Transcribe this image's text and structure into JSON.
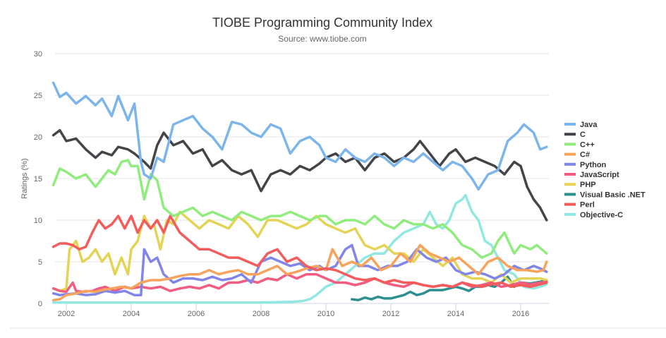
{
  "chart_data": {
    "type": "line",
    "title": "TIOBE Programming Community Index",
    "subtitle": "Source: www.tiobe.com",
    "xlabel": "",
    "ylabel": "Ratings (%)",
    "xlim": [
      2001.5,
      2016.9
    ],
    "ylim": [
      0,
      30
    ],
    "x_ticks": [
      "2002",
      "2004",
      "2006",
      "2008",
      "2010",
      "2012",
      "2014",
      "2016"
    ],
    "y_ticks": [
      "0",
      "5",
      "10",
      "15",
      "20",
      "25",
      "30"
    ],
    "grid": true,
    "legend_position": "right",
    "series": [
      {
        "name": "Java",
        "color": "#7cb5ec",
        "x": [
          2001.6,
          2001.8,
          2002.0,
          2002.3,
          2002.6,
          2002.9,
          2003.1,
          2003.4,
          2003.6,
          2003.9,
          2004.1,
          2004.3,
          2004.4,
          2004.6,
          2004.8,
          2005.0,
          2005.3,
          2005.6,
          2005.9,
          2006.2,
          2006.5,
          2006.8,
          2007.1,
          2007.4,
          2007.7,
          2008.0,
          2008.3,
          2008.6,
          2008.9,
          2009.2,
          2009.5,
          2009.8,
          2010.0,
          2010.3,
          2010.6,
          2010.9,
          2011.2,
          2011.5,
          2011.8,
          2012.1,
          2012.4,
          2012.7,
          2013.0,
          2013.3,
          2013.6,
          2013.9,
          2014.2,
          2014.5,
          2014.7,
          2015.0,
          2015.3,
          2015.6,
          2015.9,
          2016.1,
          2016.4,
          2016.6,
          2016.8
        ],
        "values": [
          26.5,
          24.8,
          25.3,
          24.0,
          24.9,
          23.8,
          24.6,
          22.5,
          24.9,
          22.0,
          24.0,
          17.0,
          15.5,
          15.0,
          17.5,
          17.0,
          21.5,
          22.0,
          22.5,
          21.0,
          20.0,
          18.5,
          21.8,
          21.5,
          20.5,
          20.0,
          21.5,
          21.0,
          18.0,
          19.5,
          20.0,
          19.0,
          17.5,
          17.0,
          18.5,
          17.5,
          17.0,
          18.0,
          17.5,
          16.5,
          17.5,
          17.0,
          18.0,
          17.0,
          16.0,
          17.0,
          16.5,
          15.0,
          13.7,
          15.5,
          16.0,
          19.5,
          20.5,
          21.5,
          20.5,
          18.5,
          18.8
        ]
      },
      {
        "name": "C",
        "color": "#434348",
        "x": [
          2001.6,
          2001.8,
          2002.0,
          2002.3,
          2002.6,
          2002.9,
          2003.1,
          2003.4,
          2003.6,
          2003.9,
          2004.1,
          2004.4,
          2004.6,
          2004.8,
          2005.0,
          2005.3,
          2005.6,
          2005.9,
          2006.2,
          2006.5,
          2006.8,
          2007.1,
          2007.4,
          2007.7,
          2008.0,
          2008.3,
          2008.6,
          2008.9,
          2009.2,
          2009.5,
          2009.8,
          2010.0,
          2010.3,
          2010.6,
          2010.9,
          2011.2,
          2011.5,
          2011.8,
          2012.1,
          2012.4,
          2012.7,
          2012.9,
          2013.2,
          2013.5,
          2013.8,
          2014.0,
          2014.3,
          2014.6,
          2014.9,
          2015.2,
          2015.5,
          2015.8,
          2016.0,
          2016.2,
          2016.4,
          2016.6,
          2016.8
        ],
        "values": [
          20.2,
          20.8,
          19.5,
          19.8,
          18.5,
          17.5,
          18.2,
          17.8,
          18.8,
          18.5,
          18.0,
          17.0,
          16.2,
          19.0,
          20.5,
          19.0,
          19.5,
          18.0,
          18.5,
          16.5,
          17.2,
          16.0,
          15.5,
          16.0,
          13.5,
          15.5,
          16.0,
          15.5,
          16.5,
          16.0,
          16.8,
          17.5,
          18.0,
          17.0,
          17.5,
          16.0,
          17.5,
          18.0,
          17.0,
          17.5,
          18.5,
          19.5,
          18.0,
          16.5,
          18.0,
          18.5,
          17.0,
          17.5,
          17.0,
          16.5,
          15.5,
          17.0,
          16.5,
          14.0,
          12.5,
          11.5,
          10.0
        ]
      },
      {
        "name": "C++",
        "color": "#90ed7d",
        "x": [
          2001.6,
          2001.8,
          2002.0,
          2002.3,
          2002.6,
          2002.9,
          2003.1,
          2003.3,
          2003.5,
          2003.7,
          2003.9,
          2004.0,
          2004.2,
          2004.4,
          2004.6,
          2004.8,
          2005.0,
          2005.3,
          2005.6,
          2005.9,
          2006.2,
          2006.5,
          2006.8,
          2007.1,
          2007.4,
          2007.7,
          2008.0,
          2008.3,
          2008.6,
          2008.9,
          2009.2,
          2009.5,
          2009.8,
          2010.0,
          2010.3,
          2010.6,
          2010.9,
          2011.2,
          2011.5,
          2011.8,
          2012.1,
          2012.4,
          2012.7,
          2013.0,
          2013.3,
          2013.6,
          2013.9,
          2014.2,
          2014.5,
          2014.8,
          2015.1,
          2015.3,
          2015.5,
          2015.8,
          2016.0,
          2016.3,
          2016.5,
          2016.8
        ],
        "values": [
          14.2,
          16.2,
          15.8,
          15.0,
          15.5,
          14.0,
          15.0,
          16.0,
          15.5,
          17.0,
          17.2,
          16.5,
          16.5,
          12.5,
          15.5,
          14.8,
          11.5,
          10.5,
          11.0,
          11.5,
          10.5,
          11.0,
          10.5,
          10.0,
          11.0,
          10.5,
          10.0,
          10.5,
          10.5,
          11.0,
          10.5,
          10.0,
          10.5,
          10.5,
          9.5,
          10.0,
          10.0,
          9.5,
          10.5,
          9.5,
          9.0,
          10.0,
          9.5,
          9.5,
          9.0,
          9.5,
          8.5,
          7.0,
          6.5,
          5.5,
          6.0,
          7.5,
          8.5,
          6.0,
          7.0,
          6.5,
          7.0,
          6.0
        ]
      },
      {
        "name": "C#",
        "color": "#f7a35c",
        "x": [
          2001.6,
          2001.8,
          2002.0,
          2002.3,
          2002.6,
          2002.9,
          2003.1,
          2003.4,
          2003.7,
          2004.0,
          2004.3,
          2004.6,
          2004.9,
          2005.2,
          2005.5,
          2005.8,
          2006.1,
          2006.4,
          2006.7,
          2007.0,
          2007.3,
          2007.6,
          2007.9,
          2008.2,
          2008.5,
          2008.8,
          2009.1,
          2009.4,
          2009.7,
          2010.0,
          2010.2,
          2010.5,
          2010.8,
          2011.1,
          2011.4,
          2011.7,
          2012.0,
          2012.3,
          2012.6,
          2012.9,
          2013.2,
          2013.5,
          2013.8,
          2014.1,
          2014.4,
          2014.7,
          2015.0,
          2015.3,
          2015.6,
          2015.9,
          2016.2,
          2016.5,
          2016.7,
          2016.8
        ],
        "values": [
          0.4,
          0.5,
          1.0,
          1.2,
          1.5,
          1.4,
          1.6,
          1.8,
          2.0,
          1.8,
          2.5,
          2.8,
          2.8,
          3.0,
          3.3,
          3.5,
          3.5,
          4.0,
          3.5,
          3.8,
          4.0,
          3.5,
          3.5,
          4.0,
          4.5,
          3.5,
          3.8,
          4.2,
          4.5,
          4.0,
          6.5,
          4.5,
          5.0,
          4.5,
          5.5,
          4.0,
          4.5,
          6.0,
          5.0,
          7.0,
          6.0,
          5.5,
          5.0,
          5.5,
          4.5,
          3.5,
          5.0,
          5.5,
          4.5,
          4.0,
          4.0,
          3.8,
          4.0,
          5.0
        ]
      },
      {
        "name": "Python",
        "color": "#8085e9",
        "x": [
          2001.6,
          2001.8,
          2002.0,
          2002.3,
          2002.6,
          2002.9,
          2003.2,
          2003.5,
          2003.8,
          2004.1,
          2004.3,
          2004.4,
          2004.6,
          2004.8,
          2005.0,
          2005.3,
          2005.6,
          2005.9,
          2006.2,
          2006.5,
          2006.8,
          2007.1,
          2007.4,
          2007.7,
          2008.0,
          2008.3,
          2008.6,
          2008.9,
          2009.2,
          2009.5,
          2009.8,
          2010.0,
          2010.3,
          2010.6,
          2010.8,
          2011.0,
          2011.3,
          2011.6,
          2011.9,
          2012.2,
          2012.5,
          2012.8,
          2013.1,
          2013.4,
          2013.7,
          2014.0,
          2014.3,
          2014.6,
          2014.9,
          2015.2,
          2015.5,
          2015.8,
          2016.1,
          2016.4,
          2016.6,
          2016.8
        ],
        "values": [
          1.2,
          1.0,
          1.1,
          1.2,
          1.0,
          1.1,
          1.5,
          1.3,
          1.5,
          1.0,
          1.0,
          6.5,
          5.0,
          5.5,
          3.5,
          2.5,
          3.0,
          3.0,
          2.8,
          3.2,
          2.8,
          3.0,
          3.5,
          2.5,
          5.0,
          5.5,
          5.0,
          4.5,
          4.8,
          4.0,
          4.5,
          4.0,
          4.5,
          6.5,
          7.0,
          4.5,
          4.5,
          4.0,
          4.5,
          4.5,
          5.0,
          6.5,
          5.5,
          5.0,
          5.5,
          4.0,
          3.5,
          3.8,
          3.5,
          3.0,
          3.5,
          4.5,
          4.0,
          4.5,
          4.2,
          3.8
        ]
      },
      {
        "name": "JavaScript",
        "color": "#f15c80",
        "x": [
          2001.6,
          2001.8,
          2002.0,
          2002.2,
          2002.3,
          2002.5,
          2002.8,
          2003.0,
          2003.2,
          2003.5,
          2003.8,
          2004.0,
          2004.3,
          2004.6,
          2004.9,
          2005.2,
          2005.5,
          2005.8,
          2006.1,
          2006.4,
          2006.7,
          2007.0,
          2007.3,
          2007.6,
          2007.9,
          2008.2,
          2008.5,
          2008.8,
          2009.1,
          2009.4,
          2009.7,
          2010.0,
          2010.3,
          2010.6,
          2010.9,
          2011.2,
          2011.5,
          2011.8,
          2012.1,
          2012.4,
          2012.7,
          2013.0,
          2013.3,
          2013.6,
          2013.9,
          2014.2,
          2014.5,
          2014.8,
          2015.1,
          2015.4,
          2015.7,
          2016.0,
          2016.3,
          2016.6,
          2016.8
        ],
        "values": [
          1.8,
          1.5,
          1.4,
          2.5,
          1.5,
          1.4,
          1.5,
          1.8,
          2.0,
          1.5,
          2.0,
          1.8,
          2.0,
          1.8,
          2.0,
          1.5,
          1.8,
          2.0,
          1.8,
          2.2,
          1.8,
          2.5,
          2.5,
          2.8,
          2.5,
          3.0,
          2.8,
          3.5,
          3.0,
          3.5,
          3.5,
          3.0,
          2.5,
          2.5,
          2.2,
          2.5,
          3.0,
          2.5,
          2.2,
          2.0,
          2.5,
          2.2,
          2.0,
          2.2,
          2.0,
          2.5,
          2.0,
          2.2,
          2.5,
          2.0,
          2.2,
          2.5,
          2.3,
          2.5,
          2.6
        ]
      },
      {
        "name": "PHP",
        "color": "#e4d354",
        "x": [
          2001.6,
          2001.8,
          2002.0,
          2002.1,
          2002.3,
          2002.5,
          2002.7,
          2002.9,
          2003.1,
          2003.3,
          2003.5,
          2003.7,
          2003.9,
          2004.0,
          2004.2,
          2004.4,
          2004.6,
          2004.7,
          2004.9,
          2005.1,
          2005.3,
          2005.5,
          2005.8,
          2006.1,
          2006.4,
          2006.7,
          2007.0,
          2007.3,
          2007.6,
          2007.9,
          2008.2,
          2008.5,
          2008.8,
          2009.1,
          2009.4,
          2009.7,
          2010.0,
          2010.3,
          2010.6,
          2010.9,
          2011.2,
          2011.5,
          2011.8,
          2012.1,
          2012.4,
          2012.7,
          2013.0,
          2013.3,
          2013.6,
          2013.9,
          2014.2,
          2014.5,
          2014.8,
          2015.1,
          2015.4,
          2015.7,
          2016.0,
          2016.3,
          2016.6,
          2016.8
        ],
        "values": [
          1.8,
          1.5,
          1.8,
          6.5,
          7.5,
          5.0,
          5.5,
          6.5,
          5.0,
          6.0,
          3.5,
          5.5,
          3.5,
          6.5,
          7.5,
          10.5,
          9.0,
          9.5,
          6.5,
          10.0,
          9.5,
          11.0,
          10.0,
          9.0,
          10.0,
          9.5,
          9.0,
          10.5,
          9.5,
          8.0,
          10.0,
          10.0,
          9.5,
          9.0,
          9.5,
          10.5,
          9.5,
          9.0,
          8.5,
          9.0,
          7.0,
          6.5,
          7.0,
          6.0,
          6.0,
          5.0,
          6.5,
          5.5,
          4.5,
          5.5,
          3.5,
          3.0,
          3.0,
          2.5,
          3.5,
          2.5,
          3.0,
          3.0,
          3.0,
          2.8
        ]
      },
      {
        "name": "Visual Basic .NET",
        "color": "#2b908f",
        "x": [
          2010.8,
          2011.0,
          2011.2,
          2011.4,
          2011.6,
          2011.8,
          2012.0,
          2012.2,
          2012.4,
          2012.6,
          2012.8,
          2013.0,
          2013.2,
          2013.4,
          2013.6,
          2013.8,
          2014.0,
          2014.2,
          2014.4,
          2014.6,
          2014.8,
          2015.0,
          2015.2,
          2015.4,
          2015.6,
          2015.8,
          2016.0,
          2016.3,
          2016.6,
          2016.8
        ],
        "values": [
          0.5,
          0.4,
          0.7,
          0.5,
          0.8,
          0.6,
          0.6,
          0.8,
          1.0,
          1.4,
          1.0,
          1.2,
          1.6,
          1.6,
          1.6,
          1.8,
          2.0,
          1.8,
          1.5,
          2.0,
          2.0,
          2.2,
          2.0,
          2.5,
          3.2,
          2.0,
          2.5,
          2.4,
          2.6,
          2.8
        ]
      },
      {
        "name": "Perl",
        "color": "#f45b5b",
        "x": [
          2001.6,
          2001.8,
          2002.0,
          2002.2,
          2002.4,
          2002.6,
          2002.8,
          2003.0,
          2003.2,
          2003.4,
          2003.6,
          2003.8,
          2004.0,
          2004.2,
          2004.4,
          2004.6,
          2004.8,
          2005.0,
          2005.2,
          2005.5,
          2005.8,
          2006.1,
          2006.4,
          2006.7,
          2007.0,
          2007.3,
          2007.6,
          2007.9,
          2008.2,
          2008.5,
          2008.8,
          2009.1,
          2009.4,
          2009.7,
          2010.0,
          2010.3,
          2010.6,
          2010.9,
          2011.2,
          2011.5,
          2011.8,
          2012.1,
          2012.4,
          2012.7,
          2013.0,
          2013.3,
          2013.6,
          2013.9,
          2014.2,
          2014.5,
          2014.8,
          2015.1,
          2015.4,
          2015.7,
          2016.0,
          2016.3,
          2016.6,
          2016.8
        ],
        "values": [
          6.8,
          7.2,
          7.2,
          7.0,
          6.5,
          6.8,
          8.5,
          10.0,
          9.0,
          9.5,
          10.5,
          9.0,
          10.5,
          8.5,
          10.0,
          9.0,
          10.0,
          8.5,
          10.5,
          8.5,
          7.5,
          6.5,
          6.5,
          6.0,
          5.5,
          5.5,
          5.0,
          4.5,
          6.0,
          6.5,
          5.0,
          5.5,
          4.5,
          4.0,
          4.2,
          4.0,
          3.5,
          3.0,
          2.8,
          3.0,
          2.5,
          2.8,
          2.5,
          2.5,
          2.2,
          2.0,
          2.2,
          2.0,
          2.5,
          2.2,
          2.0,
          2.3,
          2.5,
          2.0,
          2.2,
          2.0,
          2.3,
          2.5
        ]
      },
      {
        "name": "Objective-C",
        "color": "#91e8e1",
        "x": [
          2001.6,
          2002.5,
          2004.0,
          2006.0,
          2008.0,
          2009.0,
          2009.3,
          2009.5,
          2009.7,
          2010.0,
          2010.3,
          2010.6,
          2010.9,
          2011.2,
          2011.5,
          2011.8,
          2012.1,
          2012.4,
          2012.7,
          2013.0,
          2013.2,
          2013.4,
          2013.6,
          2013.8,
          2014.0,
          2014.2,
          2014.3,
          2014.5,
          2014.7,
          2014.9,
          2015.1,
          2015.3,
          2015.5,
          2015.8,
          2016.1,
          2016.4,
          2016.6,
          2016.8
        ],
        "values": [
          0.1,
          0.1,
          0.1,
          0.1,
          0.1,
          0.2,
          0.3,
          0.5,
          1.0,
          2.0,
          2.5,
          3.5,
          4.5,
          5.5,
          6.0,
          6.0,
          7.5,
          8.5,
          9.0,
          9.5,
          11.0,
          9.5,
          9.0,
          10.0,
          12.0,
          12.5,
          13.0,
          11.0,
          10.0,
          7.5,
          7.0,
          5.5,
          4.0,
          3.5,
          2.0,
          1.8,
          2.0,
          2.3
        ]
      }
    ]
  }
}
